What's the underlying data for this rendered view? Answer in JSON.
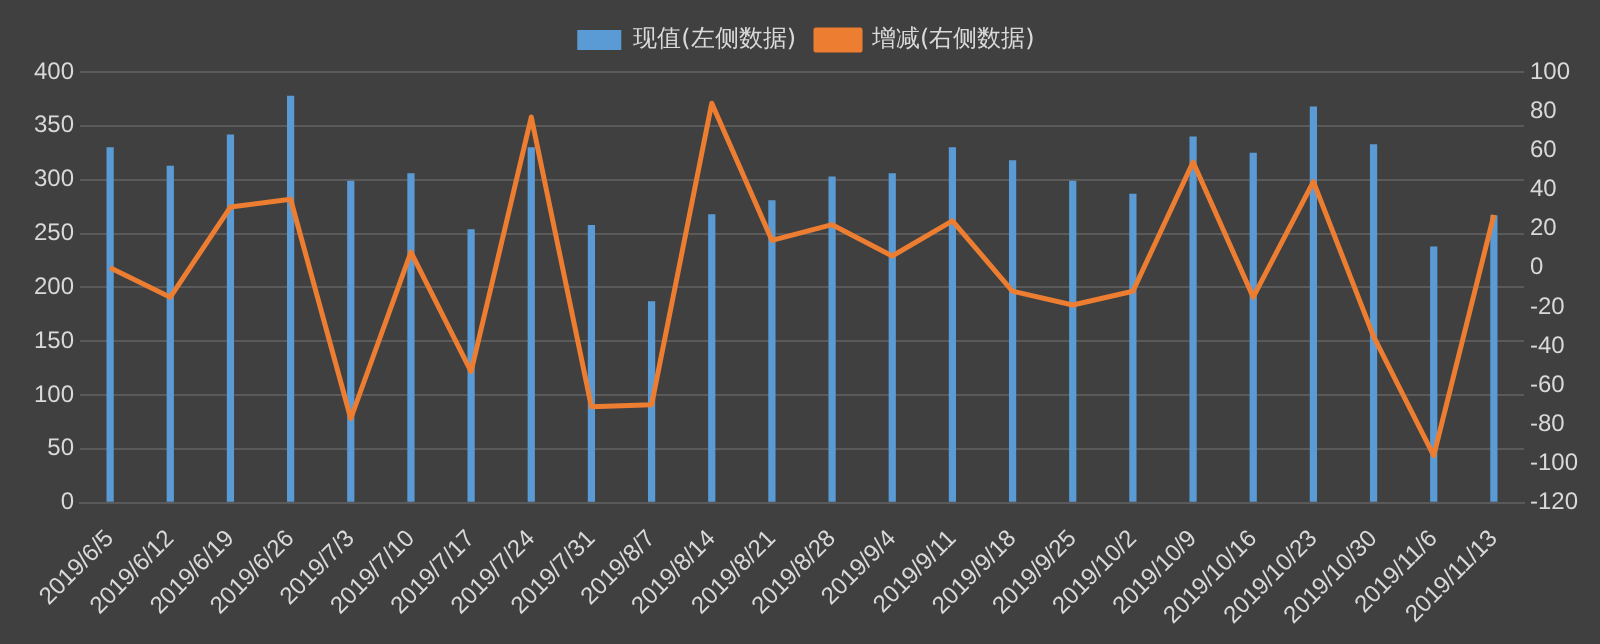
{
  "chart_data": {
    "type": "bar",
    "categories": [
      "2019/6/5",
      "2019/6/12",
      "2019/6/19",
      "2019/6/26",
      "2019/7/3",
      "2019/7/10",
      "2019/7/17",
      "2019/7/24",
      "2019/7/31",
      "2019/8/7",
      "2019/8/14",
      "2019/8/21",
      "2019/8/28",
      "2019/9/4",
      "2019/9/11",
      "2019/9/18",
      "2019/9/25",
      "2019/10/2",
      "2019/10/9",
      "2019/10/16",
      "2019/10/23",
      "2019/10/30",
      "2019/11/6",
      "2019/11/13"
    ],
    "series": [
      {
        "name": "现值(左侧数据)",
        "color": "#5b9bd5",
        "values": [
          330,
          313,
          342,
          378,
          299,
          306,
          254,
          330,
          258,
          187,
          268,
          281,
          303,
          306,
          330,
          318,
          299,
          287,
          340,
          325,
          368,
          333,
          238,
          267
        ]
      },
      {
        "name": "增减(右侧数据)",
        "type": "line",
        "axis": "y2",
        "color": "#ed7d31",
        "values": [
          0,
          -15,
          31,
          35,
          -77,
          8,
          -53,
          77,
          -71,
          -70,
          84,
          14,
          22,
          6,
          24,
          -12,
          -19,
          -12,
          54,
          -15,
          44,
          -35,
          -96,
          27
        ]
      }
    ],
    "ylim": [
      0,
      400
    ],
    "yticks": [
      0,
      50,
      100,
      150,
      200,
      250,
      300,
      350,
      400
    ],
    "y2lim": [
      -120,
      100
    ],
    "y2ticks": [
      -120,
      -100,
      -80,
      -60,
      -40,
      -20,
      0,
      20,
      40,
      60,
      80,
      100
    ],
    "grid": "y",
    "legend": "top",
    "marker": "none",
    "line_style": "solid"
  }
}
